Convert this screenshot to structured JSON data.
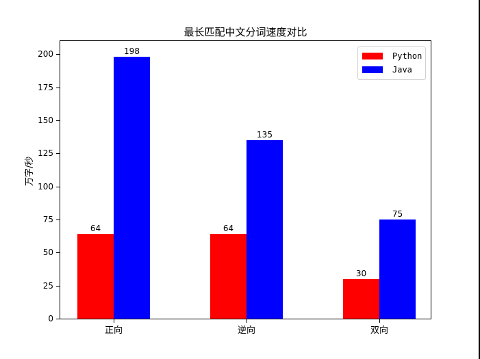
{
  "chart_data": {
    "type": "bar",
    "title": "最长匹配中文分词速度对比",
    "xlabel": "",
    "ylabel": "万字/秒",
    "categories": [
      "正向",
      "逆向",
      "双向"
    ],
    "series": [
      {
        "name": "Python",
        "color": "#ff0000",
        "values": [
          64,
          64,
          30
        ]
      },
      {
        "name": "Java",
        "color": "#0000ff",
        "values": [
          198,
          135,
          75
        ]
      }
    ],
    "ylim": [
      0,
      210
    ],
    "yticks": [
      0,
      25,
      50,
      75,
      100,
      125,
      150,
      175,
      200
    ],
    "grid": false,
    "legend_position": "upper right",
    "bar_labels": true
  },
  "legend": {
    "items": [
      {
        "label": "Python",
        "color": "#ff0000"
      },
      {
        "label": "Java",
        "color": "#0000ff"
      }
    ]
  }
}
